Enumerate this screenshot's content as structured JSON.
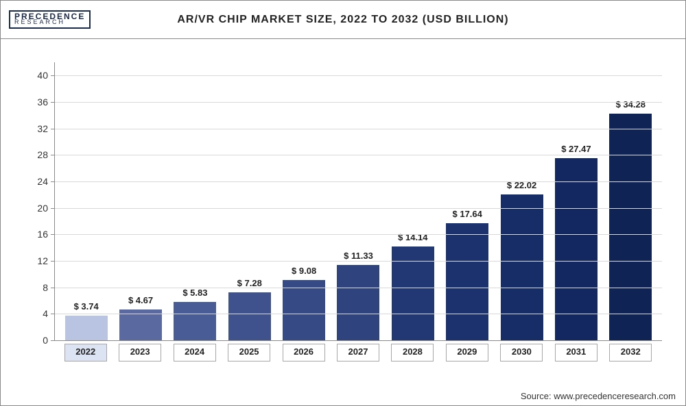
{
  "logo": {
    "line1": "PRECEDENCE",
    "line2": "RESEARCH"
  },
  "title": "AR/VR CHIP MARKET SIZE, 2022 TO 2032 (USD BILLION)",
  "source": "Source: www.precedenceresearch.com",
  "chart": {
    "type": "bar",
    "ylim": [
      0,
      42
    ],
    "yticks": [
      0,
      4,
      8,
      12,
      16,
      20,
      24,
      28,
      32,
      36,
      40
    ],
    "grid_color": "#d8d8d8",
    "axis_color": "#888888",
    "background_color": "#ffffff",
    "label_fontsize": 13,
    "label_fontweight": 700,
    "value_prefix": "$ ",
    "categories": [
      "2022",
      "2023",
      "2024",
      "2025",
      "2026",
      "2027",
      "2028",
      "2029",
      "2030",
      "2031",
      "2032"
    ],
    "values": [
      3.74,
      4.67,
      5.83,
      7.28,
      9.08,
      11.33,
      14.14,
      17.64,
      22.02,
      27.47,
      34.28
    ],
    "bar_colors": [
      "#b9c3e2",
      "#5a6aa1",
      "#4a5c95",
      "#3f528d",
      "#364a85",
      "#2f437e",
      "#223874",
      "#1c326e",
      "#172d68",
      "#132861",
      "#0f2355"
    ],
    "highlight_index": 0,
    "highlight_box_bg": "#dce3f2",
    "normal_box_bg": "#ffffff",
    "bar_width": 0.78
  }
}
